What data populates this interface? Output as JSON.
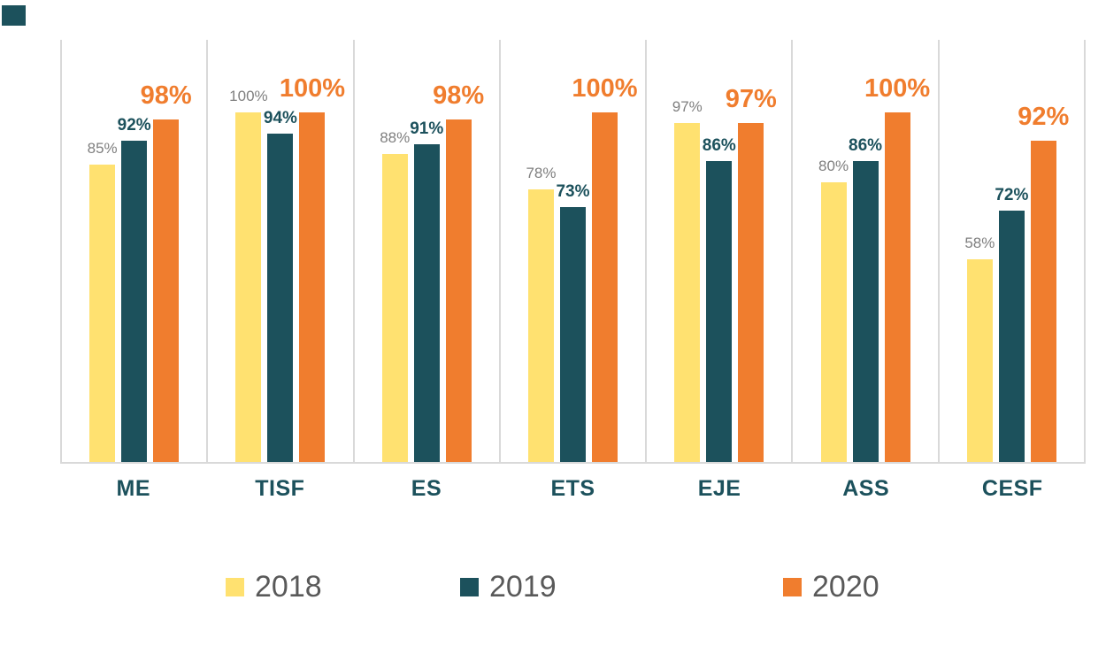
{
  "corner_accent": {
    "color": "#1C515C"
  },
  "chart_data": {
    "type": "bar",
    "title": "",
    "categories": [
      "ME",
      "TISF",
      "ES",
      "ETS",
      "EJE",
      "ASS",
      "CESF"
    ],
    "series": [
      {
        "name": "2018",
        "color": "#FFE170",
        "label_color": "#7F7F7F",
        "values": [
          85,
          100,
          88,
          78,
          97,
          80,
          58
        ]
      },
      {
        "name": "2019",
        "color": "#1C515C",
        "label_color": "#1C515C",
        "values": [
          92,
          94,
          91,
          73,
          86,
          86,
          72
        ]
      },
      {
        "name": "2020",
        "color": "#F07D2E",
        "label_color": "#F07D2E",
        "values": [
          98,
          100,
          98,
          100,
          97,
          100,
          92
        ]
      }
    ],
    "value_suffix": "%",
    "ylim": [
      0,
      100
    ],
    "value_labels_visible": true,
    "y_axis_visible": false,
    "gridlines": "vertical category separators only",
    "grid_color": "#D9D9D9",
    "baseline_color": "#D9D9D9",
    "category_label_color": "#1C515C",
    "legend_position": "bottom",
    "legend_text_color": "#595959",
    "background_color": "#FFFFFF"
  }
}
